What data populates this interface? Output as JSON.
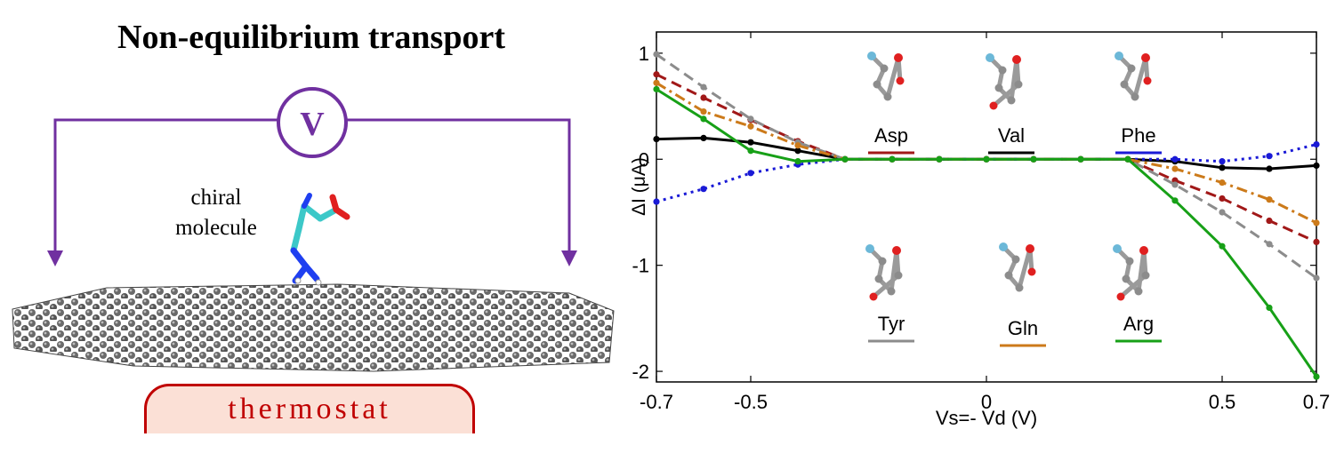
{
  "left_panel": {
    "title": "Non-equilibrium transport",
    "voltmeter_label": "V",
    "molecule_label_line1": "chiral",
    "molecule_label_line2": "molecule",
    "thermostat_label": "thermostat",
    "circuit_color": "#7030a0",
    "thermostat_color": "#c00000"
  },
  "chart_data": {
    "type": "line",
    "xlabel": "Vs=- Vd (V)",
    "ylabel": "ΔĪ (μA)",
    "xlim": [
      -0.7,
      0.7
    ],
    "ylim": [
      -2.1,
      1.2
    ],
    "x_ticks": [
      "-0.7",
      "-0.5",
      "0",
      "0.5",
      "0.7"
    ],
    "x_tick_values": [
      -0.7,
      -0.5,
      0,
      0.5,
      0.7
    ],
    "y_ticks": [
      "1",
      "0",
      "-1",
      "-2"
    ],
    "y_tick_values": [
      1,
      0,
      -1,
      -2
    ],
    "grid": false,
    "series": [
      {
        "name": "Asp",
        "color": "#a11818",
        "style": "dashed",
        "x": [
          -0.7,
          -0.6,
          -0.5,
          -0.4,
          -0.3,
          -0.2,
          -0.1,
          0,
          0.1,
          0.2,
          0.3,
          0.4,
          0.5,
          0.6,
          0.7
        ],
        "y": [
          0.8,
          0.58,
          0.37,
          0.17,
          0,
          0,
          0,
          0,
          0,
          0,
          0,
          -0.2,
          -0.37,
          -0.58,
          -0.78
        ]
      },
      {
        "name": "Val",
        "color": "#000000",
        "style": "solid",
        "x": [
          -0.7,
          -0.6,
          -0.5,
          -0.4,
          -0.3,
          -0.2,
          -0.1,
          0,
          0.1,
          0.2,
          0.3,
          0.4,
          0.5,
          0.6,
          0.7
        ],
        "y": [
          0.19,
          0.2,
          0.16,
          0.08,
          0,
          0,
          0,
          0,
          0,
          0,
          0,
          -0.02,
          -0.08,
          -0.09,
          -0.06
        ]
      },
      {
        "name": "Phe",
        "color": "#1a1ad6",
        "style": "dotted",
        "x": [
          -0.7,
          -0.6,
          -0.5,
          -0.4,
          -0.3,
          -0.2,
          -0.1,
          0,
          0.1,
          0.2,
          0.3,
          0.4,
          0.5,
          0.6,
          0.7
        ],
        "y": [
          -0.4,
          -0.28,
          -0.13,
          -0.05,
          0,
          0,
          0,
          0,
          0,
          0,
          0,
          0,
          -0.02,
          0.03,
          0.14
        ]
      },
      {
        "name": "Tyr",
        "color": "#8c8c8c",
        "style": "dashed",
        "x": [
          -0.7,
          -0.6,
          -0.5,
          -0.4,
          -0.3,
          -0.2,
          -0.1,
          0,
          0.1,
          0.2,
          0.3,
          0.4,
          0.5,
          0.6,
          0.7
        ],
        "y": [
          0.99,
          0.68,
          0.38,
          0.16,
          0,
          0,
          0,
          0,
          0,
          0,
          0,
          -0.24,
          -0.5,
          -0.8,
          -1.12
        ]
      },
      {
        "name": "Gln",
        "color": "#cc7a1a",
        "style": "dashdot",
        "x": [
          -0.7,
          -0.6,
          -0.5,
          -0.4,
          -0.3,
          -0.2,
          -0.1,
          0,
          0.1,
          0.2,
          0.3,
          0.4,
          0.5,
          0.6,
          0.7
        ],
        "y": [
          0.72,
          0.45,
          0.31,
          0.13,
          0,
          0,
          0,
          0,
          0,
          0,
          0,
          -0.09,
          -0.22,
          -0.38,
          -0.6
        ]
      },
      {
        "name": "Arg",
        "color": "#17a017",
        "style": "solid",
        "x": [
          -0.7,
          -0.6,
          -0.5,
          -0.4,
          -0.3,
          -0.2,
          -0.1,
          0,
          0.1,
          0.2,
          0.3,
          0.4,
          0.5,
          0.6,
          0.7
        ],
        "y": [
          0.66,
          0.38,
          0.08,
          -0.02,
          0,
          0,
          0,
          0,
          0,
          0,
          0,
          -0.39,
          -0.82,
          -1.4,
          -2.05
        ]
      }
    ],
    "legend": [
      {
        "label": "Asp",
        "color": "#a11818"
      },
      {
        "label": "Val",
        "color": "#000000"
      },
      {
        "label": "Phe",
        "color": "#1a1ad6"
      },
      {
        "label": "Tyr",
        "color": "#8c8c8c"
      },
      {
        "label": "Gln",
        "color": "#cc7a1a"
      },
      {
        "label": "Arg",
        "color": "#17a017"
      }
    ]
  }
}
